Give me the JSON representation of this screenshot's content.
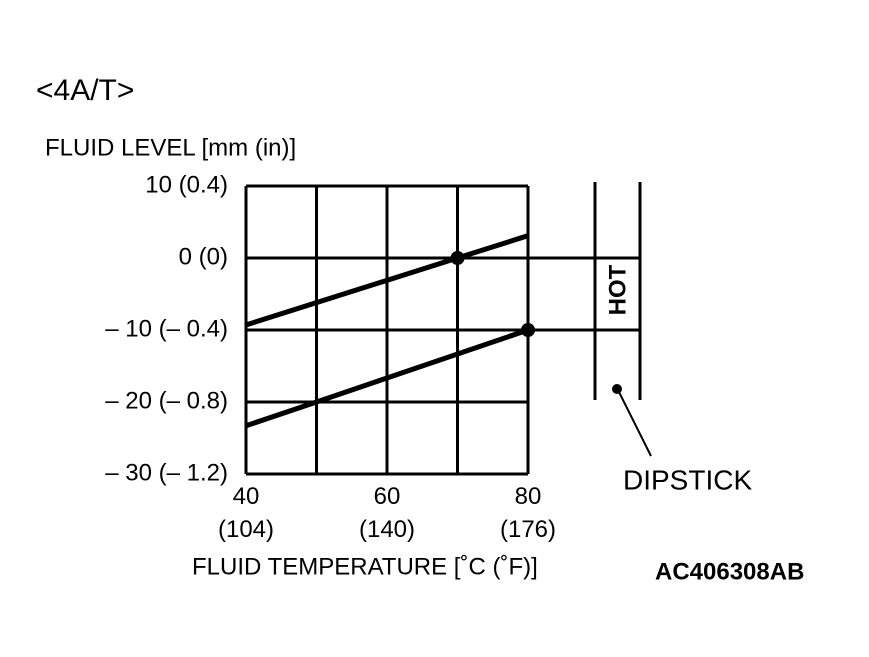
{
  "title": "<4A/T>",
  "chart_data": {
    "type": "line",
    "y_label": "FLUID LEVEL [mm (in)]",
    "x_label": "FLUID TEMPERATURE [˚C (˚F)]",
    "xlim": [
      40,
      80
    ],
    "ylim": [
      -30,
      10
    ],
    "xticks": [
      {
        "value": 40,
        "label": "40\n(104)"
      },
      {
        "value": 60,
        "label": "60\n(140)"
      },
      {
        "value": 80,
        "label": "80\n(176)"
      }
    ],
    "yticks": [
      {
        "value": 10,
        "label": "10 (0.4)"
      },
      {
        "value": 0,
        "label": "0 (0)"
      },
      {
        "value": -10,
        "label": "– 10 (– 0.4)"
      },
      {
        "value": -20,
        "label": "– 20 (– 0.8)"
      },
      {
        "value": -30,
        "label": "– 30 (– 1.2)"
      }
    ],
    "xgrid": [
      40,
      50,
      60,
      70,
      80
    ],
    "grid": true,
    "series": [
      {
        "color": "#000000",
        "x": [
          40,
          70,
          80
        ],
        "values": [
          -9.3,
          0,
          3.1
        ]
      },
      {
        "color": "#000000",
        "x": [
          40,
          50,
          80
        ],
        "values": [
          -23.3,
          -20,
          -10
        ]
      }
    ],
    "points": {
      "x": [
        70,
        80
      ],
      "values": [
        0,
        -10
      ]
    }
  },
  "dipstick": {
    "label": "HOT",
    "caption": "DIPSTICK"
  },
  "figure_id": "AC406308AB"
}
